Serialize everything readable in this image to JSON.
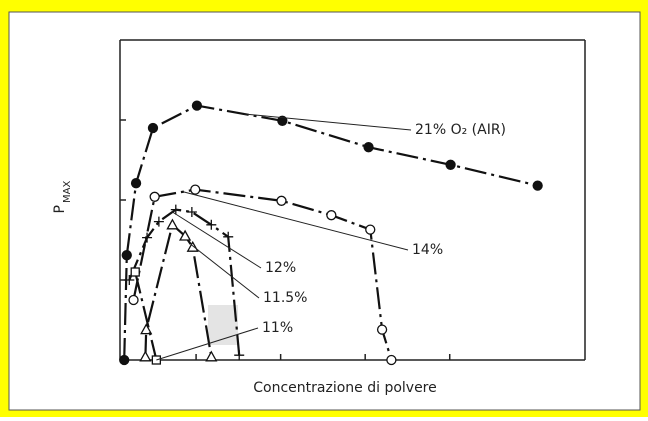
{
  "chart_data": {
    "type": "line",
    "xlabel": "Concentrazione di polvere",
    "ylabel": "P",
    "ylabel_sub": "MAX",
    "xlim": [
      0.1,
      5.6
    ],
    "ylim": [
      0,
      4
    ],
    "xticks": [
      1,
      2,
      3,
      4
    ],
    "yticks": [
      1,
      2,
      3
    ],
    "series": [
      {
        "name": "21% O₂ (AIR)",
        "marker": "filled-circle",
        "color": "#111111",
        "x": [
          0.15,
          0.18,
          0.29,
          0.49,
          1.01,
          2.02,
          3.04,
          4.01,
          5.04
        ],
        "values": [
          0,
          1.31,
          2.21,
          2.9,
          3.18,
          2.99,
          2.66,
          2.44,
          2.18
        ]
      },
      {
        "name": "14%",
        "marker": "open-circle",
        "color": "#111111",
        "x": [
          0.26,
          0.51,
          0.99,
          2.01,
          2.6,
          3.06,
          3.2,
          3.31
        ],
        "values": [
          0.75,
          2.04,
          2.13,
          1.99,
          1.81,
          1.63,
          0.38,
          0
        ]
      },
      {
        "name": "12%",
        "marker": "cross",
        "color": "#111111",
        "x": [
          0.21,
          0.42,
          0.56,
          0.76,
          0.95,
          1.18,
          1.38,
          1.51
        ],
        "values": [
          1.0,
          1.53,
          1.73,
          1.88,
          1.85,
          1.69,
          1.54,
          0.06
        ]
      },
      {
        "name": "11.5%",
        "marker": "triangle",
        "color": "#111111",
        "x": [
          0.4,
          0.41,
          0.72,
          0.87,
          0.96,
          1.18
        ],
        "values": [
          0.04,
          0.38,
          1.69,
          1.55,
          1.41,
          0.04
        ]
      },
      {
        "name": "11%",
        "marker": "square",
        "color": "#111111",
        "x": [
          0.28,
          0.53
        ],
        "values": [
          1.1,
          0
        ]
      }
    ]
  }
}
